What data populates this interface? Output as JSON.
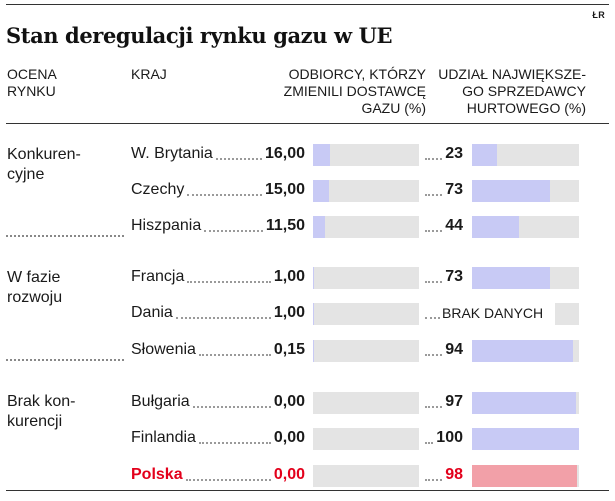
{
  "header": {
    "credit": "ŁR",
    "title": "Stan deregulacji rynku gazu w UE"
  },
  "columns": {
    "ocena": [
      "OCENA",
      "RYNKU"
    ],
    "kraj": "KRAJ",
    "odbiorcy": [
      "ODBIORCY, KTÓRZY",
      "ZMIENILI DOSTAWCĘ",
      "GAZU (%)"
    ],
    "udzial": [
      "UDZIAŁ NAJWIĘKSZE-",
      "GO SPRZEDAWCY",
      "HURTOWEGO (%)"
    ]
  },
  "groups": [
    {
      "label": [
        "Konkuren-",
        "cyjne"
      ]
    },
    {
      "label": [
        "W fazie",
        "rozwoju"
      ]
    },
    {
      "label": [
        "Brak kon-",
        "kurencji"
      ]
    }
  ],
  "no_data_label": "BRAK DANYCH",
  "colors": {
    "bar": "#c8caf5",
    "track": "#e4e4e4",
    "highlight": "#e3001b",
    "highlight_bar": "#f2a0a8"
  },
  "chart_data": {
    "type": "table",
    "title": "Stan deregulacji rynku gazu w UE",
    "bar_scale_max": 100,
    "rows": [
      {
        "group": "Konkurencyjne",
        "country": "W. Brytania",
        "switched": 16.0,
        "switched_label": "16,00",
        "share": 23,
        "share_label": "23",
        "highlight": false
      },
      {
        "group": "Konkurencyjne",
        "country": "Czechy",
        "switched": 15.0,
        "switched_label": "15,00",
        "share": 73,
        "share_label": "73",
        "highlight": false
      },
      {
        "group": "Konkurencyjne",
        "country": "Hiszpania",
        "switched": 11.5,
        "switched_label": "11,50",
        "share": 44,
        "share_label": "44",
        "highlight": false
      },
      {
        "group": "W fazie rozwoju",
        "country": "Francja",
        "switched": 1.0,
        "switched_label": "1,00",
        "share": 73,
        "share_label": "73",
        "highlight": false
      },
      {
        "group": "W fazie rozwoju",
        "country": "Dania",
        "switched": 1.0,
        "switched_label": "1,00",
        "share": null,
        "share_label": "",
        "highlight": false
      },
      {
        "group": "W fazie rozwoju",
        "country": "Słowenia",
        "switched": 0.15,
        "switched_label": "0,15",
        "share": 94,
        "share_label": "94",
        "highlight": false
      },
      {
        "group": "Brak konkurencji",
        "country": "Bułgaria",
        "switched": 0.0,
        "switched_label": "0,00",
        "share": 97,
        "share_label": "97",
        "highlight": false
      },
      {
        "group": "Brak konkurencji",
        "country": "Finlandia",
        "switched": 0.0,
        "switched_label": "0,00",
        "share": 100,
        "share_label": "100",
        "highlight": false
      },
      {
        "group": "Brak konkurencji",
        "country": "Polska",
        "switched": 0.0,
        "switched_label": "0,00",
        "share": 98,
        "share_label": "98",
        "highlight": true
      }
    ]
  }
}
